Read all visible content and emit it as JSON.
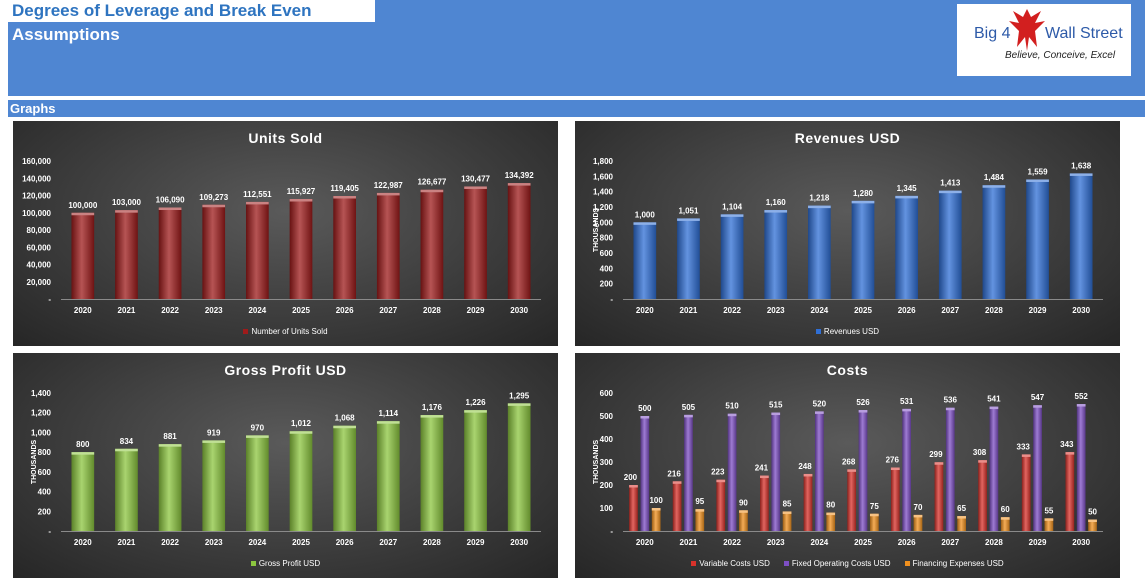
{
  "header": {
    "title": "Degrees of Leverage and Break Even",
    "subtitle": "Assumptions",
    "section": "Graphs"
  },
  "logo": {
    "left_text": "Big 4",
    "right_text": "Wall Street",
    "tagline": "Believe, Conceive, Excel",
    "icon": "eagle-icon"
  },
  "chart_data": [
    {
      "type": "bar",
      "title": "Units Sold",
      "ylabel": "",
      "categories": [
        "2020",
        "2021",
        "2022",
        "2023",
        "2024",
        "2025",
        "2026",
        "2027",
        "2028",
        "2029",
        "2030"
      ],
      "series": [
        {
          "name": "Number of Units Sold",
          "values": [
            100000,
            103000,
            106090,
            109273,
            112551,
            115927,
            119405,
            122987,
            126677,
            130477,
            134392
          ],
          "color": "#9e1b1b"
        }
      ],
      "value_labels": [
        "100,000",
        "103,000",
        "106,090",
        "109,273",
        "112,551",
        "115,927",
        "119,405",
        "122,987",
        "126,677",
        "130,477",
        "134,392"
      ],
      "yticks": [
        "-",
        "20,000",
        "40,000",
        "60,000",
        "80,000",
        "100,000",
        "120,000",
        "140,000",
        "160,000"
      ],
      "ylim": [
        0,
        160000
      ],
      "legend": "bottom"
    },
    {
      "type": "bar",
      "title": "Revenues USD",
      "ylabel": "THOUSANDS",
      "categories": [
        "2020",
        "2021",
        "2022",
        "2023",
        "2024",
        "2025",
        "2026",
        "2027",
        "2028",
        "2029",
        "2030"
      ],
      "series": [
        {
          "name": "Revenues USD",
          "values": [
            1000,
            1051,
            1104,
            1160,
            1218,
            1280,
            1345,
            1413,
            1484,
            1559,
            1638
          ],
          "color": "#2f6fd6"
        }
      ],
      "value_labels": [
        "1,000",
        "1,051",
        "1,104",
        "1,160",
        "1,218",
        "1,280",
        "1,345",
        "1,413",
        "1,484",
        "1,559",
        "1,638"
      ],
      "yticks": [
        "-",
        "200",
        "400",
        "600",
        "800",
        "1,000",
        "1,200",
        "1,400",
        "1,600",
        "1,800"
      ],
      "ylim": [
        0,
        1800
      ],
      "legend": "bottom"
    },
    {
      "type": "bar",
      "title": "Gross Profit USD",
      "ylabel": "THOUSANDS",
      "categories": [
        "2020",
        "2021",
        "2022",
        "2023",
        "2024",
        "2025",
        "2026",
        "2027",
        "2028",
        "2029",
        "2030"
      ],
      "series": [
        {
          "name": "Gross Profit USD",
          "values": [
            800,
            834,
            881,
            919,
            970,
            1012,
            1068,
            1114,
            1176,
            1226,
            1295
          ],
          "color": "#8cc63f"
        }
      ],
      "value_labels": [
        "800",
        "834",
        "881",
        "919",
        "970",
        "1,012",
        "1,068",
        "1,114",
        "1,176",
        "1,226",
        "1,295"
      ],
      "yticks": [
        "-",
        "200",
        "400",
        "600",
        "800",
        "1,000",
        "1,200",
        "1,400"
      ],
      "ylim": [
        0,
        1400
      ],
      "legend": "bottom"
    },
    {
      "type": "bar",
      "title": "Costs",
      "ylabel": "THOUSANDS",
      "categories": [
        "2020",
        "2021",
        "2022",
        "2023",
        "2024",
        "2025",
        "2026",
        "2027",
        "2028",
        "2029",
        "2030"
      ],
      "series": [
        {
          "name": "Variable Costs USD",
          "values": [
            200,
            216,
            223,
            241,
            248,
            268,
            276,
            299,
            308,
            333,
            343
          ],
          "color": "#d8322b"
        },
        {
          "name": "Fixed Operating Costs USD",
          "values": [
            500,
            505,
            510,
            515,
            520,
            526,
            531,
            536,
            541,
            547,
            552
          ],
          "color": "#7d4fc4"
        },
        {
          "name": "Financing Expenses USD",
          "values": [
            100,
            95,
            90,
            85,
            80,
            75,
            70,
            65,
            60,
            55,
            50
          ],
          "color": "#f0901e"
        }
      ],
      "yticks": [
        "-",
        "100",
        "200",
        "300",
        "400",
        "500",
        "600"
      ],
      "ylim": [
        0,
        600
      ],
      "legend": "bottom"
    }
  ]
}
